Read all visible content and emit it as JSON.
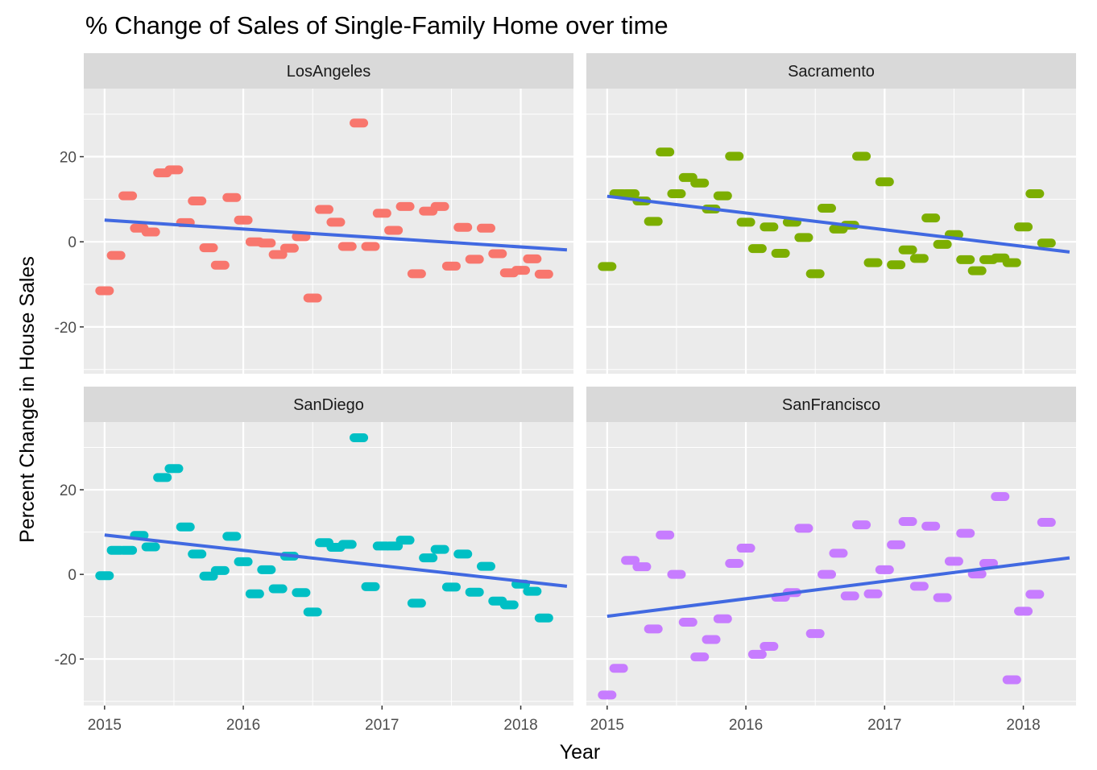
{
  "chart_data": {
    "type": "scatter",
    "title": "% Change of Sales of Single-Family Home over time",
    "xlabel": "Year",
    "ylabel": "Percent Change in House Sales",
    "xlim": [
      2014.85,
      2018.38
    ],
    "ylim": [
      -31,
      36
    ],
    "x_ticks": [
      2015,
      2016,
      2017,
      2018
    ],
    "x_tick_labels": [
      "2015",
      "2016",
      "2017",
      "2018"
    ],
    "y_ticks": [
      -20,
      0,
      20
    ],
    "y_tick_labels": [
      "-20",
      "0",
      "20"
    ],
    "grid": true,
    "facets": [
      {
        "name": "LosAngeles",
        "color": "#F8766D",
        "x": [
          2015.0,
          2015.083,
          2015.167,
          2015.25,
          2015.333,
          2015.417,
          2015.5,
          2015.583,
          2015.667,
          2015.75,
          2015.833,
          2015.917,
          2016.0,
          2016.083,
          2016.167,
          2016.25,
          2016.333,
          2016.417,
          2016.5,
          2016.583,
          2016.667,
          2016.75,
          2016.833,
          2016.917,
          2017.0,
          2017.083,
          2017.167,
          2017.25,
          2017.333,
          2017.417,
          2017.5,
          2017.583,
          2017.667,
          2017.75,
          2017.833,
          2017.917,
          2018.0,
          2018.083,
          2018.167
        ],
        "y": [
          -11.5,
          -3.2,
          10.8,
          3.2,
          2.3,
          16.2,
          16.9,
          4.5,
          9.6,
          -1.4,
          -5.5,
          10.4,
          5.1,
          0.0,
          -0.3,
          -3.0,
          -1.5,
          1.2,
          -13.2,
          7.6,
          4.6,
          -1.1,
          27.9,
          -1.1,
          6.7,
          2.7,
          8.3,
          -7.5,
          7.2,
          8.3,
          -5.7,
          3.4,
          -4.1,
          3.2,
          -2.8,
          -7.3,
          -6.7,
          -4.0,
          -7.6
        ],
        "trend": [
          [
            2015.0,
            5.1
          ],
          [
            2018.333,
            -1.9
          ]
        ]
      },
      {
        "name": "Sacramento",
        "color": "#7CAE00",
        "x": [
          2015.0,
          2015.083,
          2015.167,
          2015.25,
          2015.333,
          2015.417,
          2015.5,
          2015.583,
          2015.667,
          2015.75,
          2015.833,
          2015.917,
          2016.0,
          2016.083,
          2016.167,
          2016.25,
          2016.333,
          2016.417,
          2016.5,
          2016.583,
          2016.667,
          2016.75,
          2016.833,
          2016.917,
          2017.0,
          2017.083,
          2017.167,
          2017.25,
          2017.333,
          2017.417,
          2017.5,
          2017.583,
          2017.667,
          2017.75,
          2017.833,
          2017.917,
          2018.0,
          2018.083,
          2018.167
        ],
        "y": [
          -5.8,
          11.3,
          11.3,
          9.6,
          4.8,
          21.1,
          11.3,
          15.1,
          13.8,
          7.7,
          10.8,
          20.1,
          4.6,
          -1.6,
          3.5,
          -2.7,
          4.6,
          1.0,
          -7.5,
          7.9,
          3.0,
          3.9,
          20.1,
          -4.9,
          14.1,
          -5.4,
          -1.9,
          -3.9,
          5.6,
          -0.6,
          1.7,
          -4.2,
          -6.8,
          -4.2,
          -3.8,
          -4.9,
          3.5,
          11.3,
          -0.3
        ],
        "trend": [
          [
            2015.0,
            10.7
          ],
          [
            2018.333,
            -2.4
          ]
        ]
      },
      {
        "name": "SanDiego",
        "color": "#00BFC4",
        "x": [
          2015.0,
          2015.083,
          2015.167,
          2015.25,
          2015.333,
          2015.417,
          2015.5,
          2015.583,
          2015.667,
          2015.75,
          2015.833,
          2015.917,
          2016.0,
          2016.083,
          2016.167,
          2016.25,
          2016.333,
          2016.417,
          2016.5,
          2016.583,
          2016.667,
          2016.75,
          2016.833,
          2016.917,
          2017.0,
          2017.083,
          2017.167,
          2017.25,
          2017.333,
          2017.417,
          2017.5,
          2017.583,
          2017.667,
          2017.75,
          2017.833,
          2017.917,
          2018.0,
          2018.083,
          2018.167
        ],
        "y": [
          -0.3,
          5.7,
          5.7,
          9.2,
          6.5,
          22.9,
          25.0,
          11.2,
          4.8,
          -0.4,
          0.9,
          9.0,
          3.0,
          -4.6,
          1.1,
          -3.4,
          4.3,
          -4.3,
          -8.9,
          7.5,
          6.4,
          7.1,
          32.3,
          -2.9,
          6.7,
          6.7,
          8.1,
          -6.8,
          3.9,
          5.9,
          -3.0,
          4.8,
          -4.2,
          1.9,
          -6.3,
          -7.2,
          -2.3,
          -4.0,
          -10.3
        ],
        "trend": [
          [
            2015.0,
            9.3
          ],
          [
            2018.333,
            -2.8
          ]
        ]
      },
      {
        "name": "SanFrancisco",
        "color": "#C77CFF",
        "x": [
          2015.0,
          2015.083,
          2015.167,
          2015.25,
          2015.333,
          2015.417,
          2015.5,
          2015.583,
          2015.667,
          2015.75,
          2015.833,
          2015.917,
          2016.0,
          2016.083,
          2016.167,
          2016.25,
          2016.333,
          2016.417,
          2016.5,
          2016.583,
          2016.667,
          2016.75,
          2016.833,
          2016.917,
          2017.0,
          2017.083,
          2017.167,
          2017.25,
          2017.333,
          2017.417,
          2017.5,
          2017.583,
          2017.667,
          2017.75,
          2017.833,
          2017.917,
          2018.0,
          2018.083,
          2018.167
        ],
        "y": [
          -28.5,
          -22.2,
          3.3,
          1.8,
          -12.9,
          9.3,
          0.0,
          -11.3,
          -19.5,
          -15.4,
          -10.5,
          2.6,
          6.2,
          -18.9,
          -17.0,
          -5.4,
          -4.3,
          10.9,
          -14.0,
          0.0,
          5.0,
          -5.1,
          11.7,
          -4.6,
          1.1,
          7.0,
          12.5,
          -2.8,
          11.4,
          -5.5,
          3.1,
          9.7,
          0.1,
          2.6,
          18.4,
          -24.9,
          -8.7,
          -4.7,
          12.3
        ],
        "trend": [
          [
            2015.0,
            -9.9
          ],
          [
            2018.333,
            3.9
          ]
        ]
      }
    ],
    "trend_color": "#4169E1"
  }
}
